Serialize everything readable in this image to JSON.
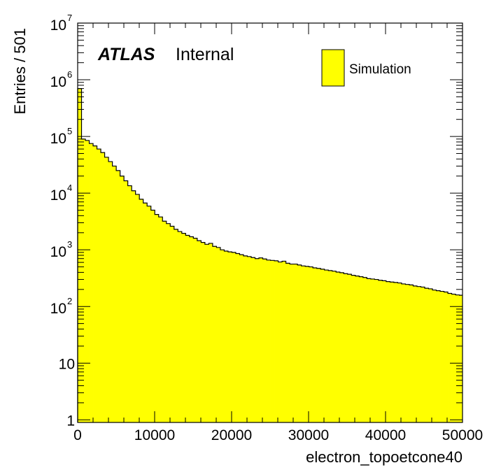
{
  "chart_data": {
    "type": "histogram",
    "title": "",
    "xlabel": "electron_topoetcone40",
    "ylabel": "Entries / 501",
    "xlim": [
      0,
      50000
    ],
    "ylim": [
      0.9,
      10000000
    ],
    "yscale": "log",
    "bin_width": 501,
    "x_ticks": [
      "0",
      "10000",
      "20000",
      "30000",
      "40000",
      "50000"
    ],
    "y_ticks": [
      {
        "base": "1",
        "exp": ""
      },
      {
        "base": "10",
        "exp": ""
      },
      {
        "base": "10",
        "exp": "2"
      },
      {
        "base": "10",
        "exp": "3"
      },
      {
        "base": "10",
        "exp": "4"
      },
      {
        "base": "10",
        "exp": "5"
      },
      {
        "base": "10",
        "exp": "6"
      },
      {
        "base": "10",
        "exp": "7"
      }
    ],
    "grid": false,
    "legend_position": "top-right",
    "atlas_label": "ATLAS",
    "atlas_status": "Internal",
    "fill_color": "#ffff00",
    "line_color": "#000000",
    "series": [
      {
        "name": "Simulation",
        "x": [
          0,
          501,
          1002,
          1503,
          2004,
          2505,
          3006,
          3507,
          4008,
          4509,
          5010,
          5511,
          6012,
          6513,
          7014,
          7515,
          8016,
          8517,
          9018,
          9519,
          10020,
          10521,
          11022,
          11523,
          12024,
          12525,
          13026,
          13527,
          14028,
          14529,
          15030,
          15531,
          16032,
          16533,
          17034,
          17535,
          18036,
          18537,
          19038,
          19539,
          20040,
          20541,
          21042,
          21543,
          22044,
          22545,
          23046,
          23547,
          24048,
          24549,
          25050,
          25551,
          26052,
          26553,
          27054,
          27555,
          28056,
          28557,
          29058,
          29559,
          30060,
          30561,
          31062,
          31563,
          32064,
          32565,
          33066,
          33567,
          34068,
          34569,
          35070,
          35571,
          36072,
          36573,
          37074,
          37575,
          38076,
          38577,
          39078,
          39579,
          40080,
          40581,
          41082,
          41583,
          42084,
          42585,
          43086,
          43587,
          44088,
          44589,
          45090,
          45591,
          46092,
          46593,
          47094,
          47595,
          48096,
          48597,
          49098,
          49599
        ],
        "values": [
          700000,
          90000,
          85000,
          75000,
          68000,
          60000,
          52000,
          43000,
          36000,
          30000,
          25000,
          20000,
          16500,
          13500,
          11000,
          9500,
          7800,
          6700,
          5900,
          5000,
          4200,
          3800,
          3200,
          2900,
          2600,
          2300,
          2100,
          1950,
          1800,
          1700,
          1600,
          1450,
          1350,
          1250,
          1300,
          1150,
          1100,
          1000,
          950,
          920,
          900,
          860,
          820,
          780,
          760,
          730,
          700,
          720,
          690,
          660,
          650,
          640,
          610,
          630,
          580,
          560,
          560,
          540,
          520,
          510,
          500,
          480,
          470,
          455,
          440,
          430,
          420,
          405,
          395,
          380,
          370,
          355,
          345,
          335,
          325,
          310,
          305,
          300,
          290,
          285,
          275,
          270,
          265,
          260,
          250,
          245,
          240,
          230,
          225,
          220,
          210,
          205,
          195,
          190,
          185,
          180,
          170,
          165,
          160,
          158
        ]
      }
    ]
  }
}
